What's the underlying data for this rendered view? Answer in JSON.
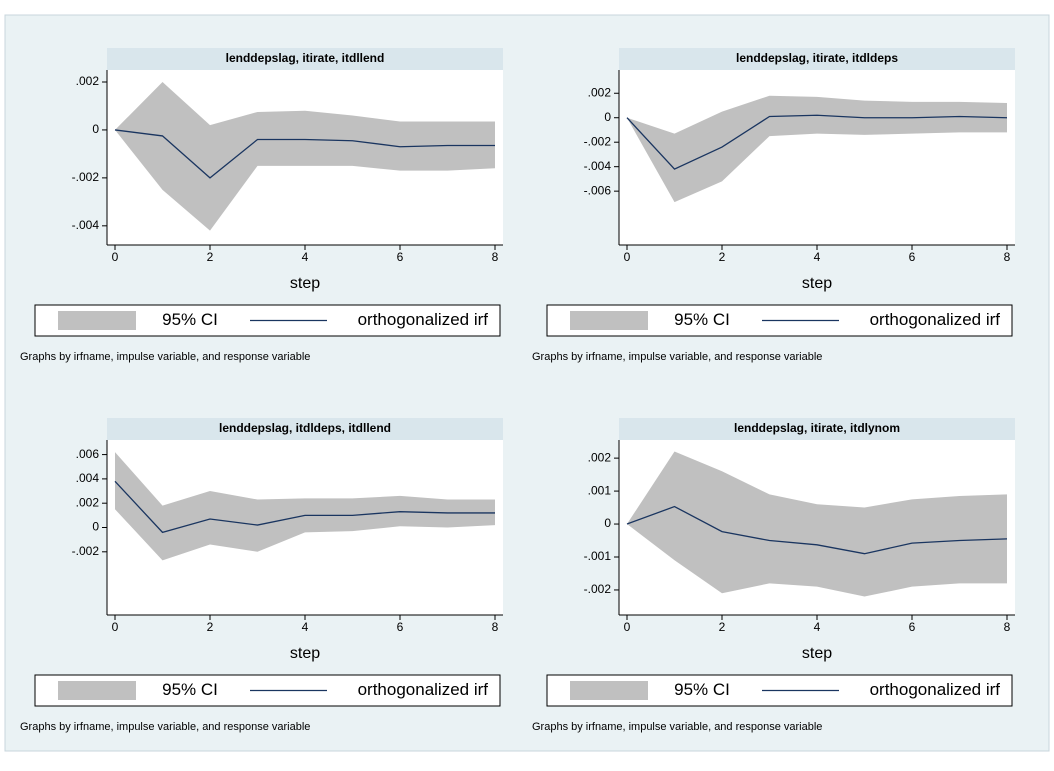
{
  "chart_data": [
    {
      "type": "line",
      "title": "lenddepslag, itirate, itdllend",
      "x": [
        0,
        1,
        2,
        3,
        4,
        5,
        6,
        7,
        8
      ],
      "xlabel": "step",
      "xlim": [
        0,
        8
      ],
      "xticks": [
        0,
        2,
        4,
        6,
        8
      ],
      "ylim": [
        -0.0048,
        0.0025
      ],
      "yticks": [
        {
          "value": 0.002,
          "label": ".002"
        },
        0,
        {
          "value": -0.002,
          "label": "-.002"
        },
        {
          "value": -0.004,
          "label": "-.004"
        }
      ],
      "series": [
        {
          "name": "95% CI",
          "color": "#c0c0c0",
          "upper": [
            0,
            0.002,
            0.0002,
            0.00075,
            0.0008,
            0.0006,
            0.00035,
            0.00035,
            0.00035
          ],
          "lower": [
            0,
            -0.0025,
            -0.0042,
            -0.0015,
            -0.0015,
            -0.0015,
            -0.0017,
            -0.0017,
            -0.0016
          ]
        },
        {
          "name": "orthogonalized irf",
          "color": "#1a3560",
          "values": [
            0,
            -0.00025,
            -0.002,
            -0.0004,
            -0.0004,
            -0.00045,
            -0.0007,
            -0.00065,
            -0.00065
          ]
        }
      ],
      "note": "Graphs by irfname, impulse variable, and response variable"
    },
    {
      "type": "line",
      "title": "lenddepslag, itirate, itdldeps",
      "x": [
        0,
        1,
        2,
        3,
        4,
        5,
        6,
        7,
        8
      ],
      "xlabel": "step",
      "xlim": [
        0,
        8
      ],
      "xticks": [
        0,
        2,
        4,
        6,
        8
      ],
      "ylim": [
        -0.0104,
        0.0039
      ],
      "yticks": [
        {
          "value": 0.002,
          "label": ".002"
        },
        0,
        {
          "value": -0.002,
          "label": "-.002"
        },
        {
          "value": -0.004,
          "label": "-.004"
        },
        {
          "value": -0.006,
          "label": "-.006"
        }
      ],
      "series": [
        {
          "name": "95% CI",
          "color": "#c0c0c0",
          "upper": [
            0,
            -0.0013,
            0.0005,
            0.0018,
            0.0017,
            0.0014,
            0.0013,
            0.0013,
            0.0012
          ],
          "lower": [
            0,
            -0.0069,
            -0.0052,
            -0.0015,
            -0.0013,
            -0.0014,
            -0.0013,
            -0.0012,
            -0.0012
          ]
        },
        {
          "name": "orthogonalized irf",
          "color": "#1a3560",
          "values": [
            0,
            -0.0042,
            -0.0024,
            0.0001,
            0.0002,
            0,
            0,
            0.0001,
            0
          ]
        }
      ],
      "note": "Graphs by irfname, impulse variable, and response variable"
    },
    {
      "type": "line",
      "title": "lenddepslag, itdldeps, itdllend",
      "x": [
        0,
        1,
        2,
        3,
        4,
        5,
        6,
        7,
        8
      ],
      "xlabel": "step",
      "xlim": [
        0,
        8
      ],
      "xticks": [
        0,
        2,
        4,
        6,
        8
      ],
      "ylim": [
        -0.0072,
        0.0072
      ],
      "yticks": [
        {
          "value": 0.006,
          "label": ".006"
        },
        {
          "value": 0.004,
          "label": ".004"
        },
        {
          "value": 0.002,
          "label": ".002"
        },
        0,
        {
          "value": -0.002,
          "label": "-.002"
        }
      ],
      "series": [
        {
          "name": "95% CI",
          "color": "#c0c0c0",
          "upper": [
            0.0062,
            0.0018,
            0.003,
            0.0023,
            0.0024,
            0.0024,
            0.0026,
            0.0023,
            0.0023
          ],
          "lower": [
            0.0015,
            -0.0027,
            -0.0014,
            -0.002,
            -0.0004,
            -0.0003,
            0.0001,
            0,
            0.0002
          ]
        },
        {
          "name": "orthogonalized irf",
          "color": "#1a3560",
          "values": [
            0.0038,
            -0.0004,
            0.0007,
            0.0002,
            0.001,
            0.001,
            0.0013,
            0.0012,
            0.0012
          ]
        }
      ],
      "note": "Graphs by irfname, impulse variable, and response variable"
    },
    {
      "type": "line",
      "title": "lenddepslag, itirate, itdlynom",
      "x": [
        0,
        1,
        2,
        3,
        4,
        5,
        6,
        7,
        8
      ],
      "xlabel": "step",
      "xlim": [
        0,
        8
      ],
      "xticks": [
        0,
        2,
        4,
        6,
        8
      ],
      "ylim": [
        -0.00276,
        0.00255
      ],
      "yticks": [
        {
          "value": 0.002,
          "label": ".002"
        },
        {
          "value": 0.001,
          "label": ".001"
        },
        0,
        {
          "value": -0.001,
          "label": "-.001"
        },
        {
          "value": -0.002,
          "label": "-.002"
        }
      ],
      "series": [
        {
          "name": "95% CI",
          "color": "#c0c0c0",
          "upper": [
            0,
            0.0022,
            0.0016,
            0.0009,
            0.0006,
            0.0005,
            0.00075,
            0.00085,
            0.0009
          ],
          "lower": [
            0,
            -0.0011,
            -0.0021,
            -0.0018,
            -0.0019,
            -0.0022,
            -0.0019,
            -0.0018,
            -0.0018
          ]
        },
        {
          "name": "orthogonalized irf",
          "color": "#1a3560",
          "values": [
            0,
            0.00053,
            -0.00023,
            -0.0005,
            -0.00063,
            -0.0009,
            -0.00058,
            -0.0005,
            -0.00045
          ]
        }
      ],
      "note": "Graphs by irfname, impulse variable, and response variable"
    }
  ]
}
